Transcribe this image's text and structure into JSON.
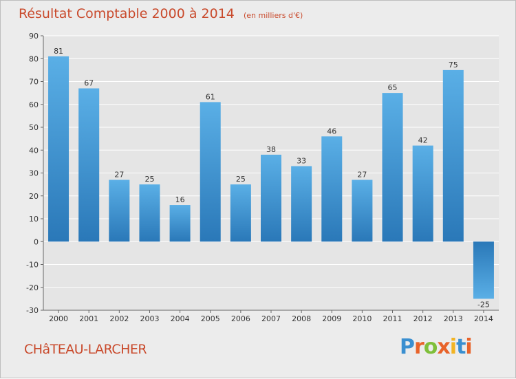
{
  "title": "Résultat Comptable 2000 à 2014",
  "subtitle": "(en milliers d'€)",
  "town": "CHâTEAU-LARCHER",
  "logo": {
    "text": "Proxiti",
    "colors": [
      "#3a8fd0",
      "#e8632a",
      "#7fbf3a",
      "#e8632a",
      "#f2b423",
      "#3a8fd0",
      "#e8632a"
    ]
  },
  "colors": {
    "bar_light": "#5aafe6",
    "bar_dark": "#2a78b8",
    "title": "#c94a2c",
    "plot_bg": "#e5e5e5",
    "grid": "#ffffff"
  },
  "chart_data": {
    "type": "bar",
    "title": "Résultat Comptable 2000 à 2014",
    "subtitle": "(en milliers d'€)",
    "xlabel": "",
    "ylabel": "",
    "categories": [
      "2000",
      "2001",
      "2002",
      "2003",
      "2004",
      "2005",
      "2006",
      "2007",
      "2008",
      "2009",
      "2010",
      "2011",
      "2012",
      "2013",
      "2014"
    ],
    "values": [
      81,
      67,
      27,
      25,
      16,
      61,
      25,
      38,
      33,
      46,
      27,
      65,
      42,
      75,
      -25
    ],
    "ylim": [
      -30,
      90
    ],
    "yticks": [
      -30,
      -20,
      -10,
      0,
      10,
      20,
      30,
      40,
      50,
      60,
      70,
      80,
      90
    ],
    "grid": true
  }
}
